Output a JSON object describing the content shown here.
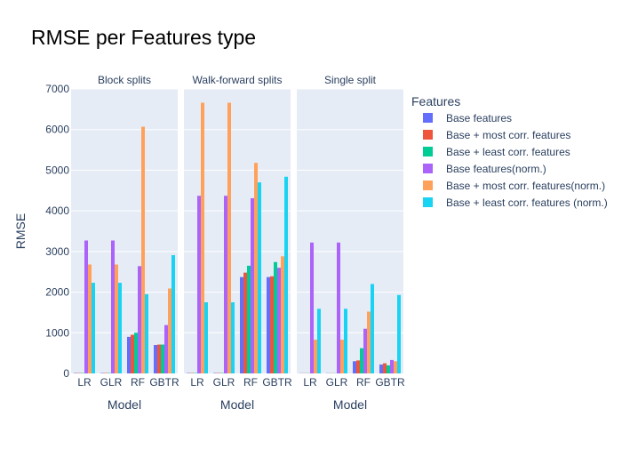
{
  "chart_data": {
    "type": "bar",
    "title": "RMSE per Features type",
    "ylabel": "RMSE",
    "xlabel": "Model",
    "ylim": [
      0,
      7000
    ],
    "yticks": [
      0,
      1000,
      2000,
      3000,
      4000,
      5000,
      6000,
      7000
    ],
    "grid": true,
    "legend_title": "Features",
    "legend_position": "right",
    "categories": [
      "LR",
      "GLR",
      "RF",
      "GBTR"
    ],
    "series": [
      {
        "name": "Base features",
        "color": "#636efa"
      },
      {
        "name": "Base + most corr. features",
        "color": "#ef553b"
      },
      {
        "name": "Base + least corr. features",
        "color": "#00cc96"
      },
      {
        "name": "Base features(norm.)",
        "color": "#ab63fa"
      },
      {
        "name": "Base + most corr. features(norm.)",
        "color": "#ffa15a"
      },
      {
        "name": "Base + least corr. features (norm.)",
        "color": "#19d3f3"
      }
    ],
    "panels": [
      {
        "title": "Block splits",
        "values": [
          [
            10,
            10,
            900,
            700
          ],
          [
            10,
            10,
            950,
            710
          ],
          [
            10,
            10,
            1000,
            710
          ],
          [
            3270,
            3270,
            2640,
            1190
          ],
          [
            2680,
            2680,
            6070,
            2090
          ],
          [
            2230,
            2230,
            1950,
            2910
          ]
        ]
      },
      {
        "title": "Walk-forward splits",
        "values": [
          [
            10,
            10,
            2370,
            2370
          ],
          [
            10,
            10,
            2480,
            2390
          ],
          [
            10,
            10,
            2650,
            2740
          ],
          [
            4370,
            4370,
            4310,
            2600
          ],
          [
            6660,
            6660,
            5180,
            2880
          ],
          [
            1750,
            1750,
            4700,
            4840
          ]
        ]
      },
      {
        "title": "Single split",
        "values": [
          [
            5,
            5,
            300,
            220
          ],
          [
            5,
            5,
            320,
            250
          ],
          [
            5,
            5,
            620,
            200
          ],
          [
            3220,
            3220,
            1100,
            330
          ],
          [
            830,
            830,
            1520,
            300
          ],
          [
            1590,
            1590,
            2200,
            1930
          ]
        ]
      }
    ]
  }
}
